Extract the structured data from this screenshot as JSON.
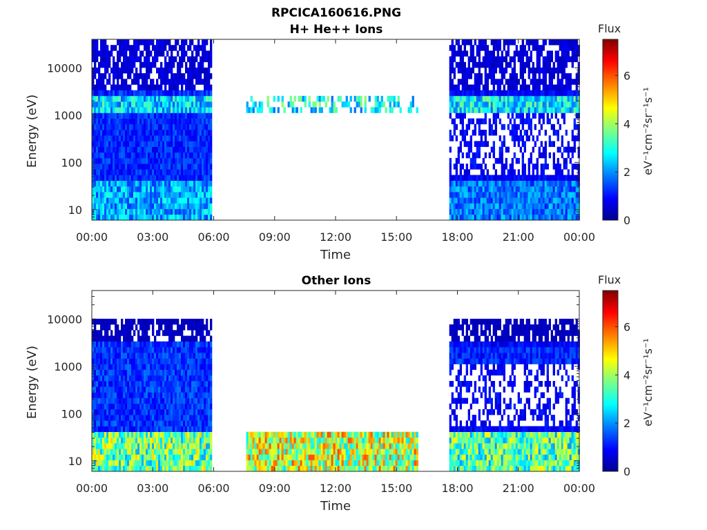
{
  "figure": {
    "title_line1": "RPCICA160616.PNG",
    "colorbar_title": "Flux",
    "colorbar_label": "eV⁻¹cm⁻²sr⁻¹s⁻¹",
    "colorbar_ticks": [
      "0",
      "2",
      "4",
      "6"
    ],
    "colorbar_range": [
      0,
      7.5
    ],
    "colormap": [
      "#00008f",
      "#0000ff",
      "#0080ff",
      "#00ffff",
      "#80ff80",
      "#ffff00",
      "#ff8000",
      "#ff0000",
      "#800000"
    ]
  },
  "chart_data": [
    {
      "type": "heatmap",
      "title": "H+ He++ Ions",
      "xlabel": "Time",
      "ylabel": "Energy (eV)",
      "x_ticks": [
        "00:00",
        "03:00",
        "06:00",
        "09:00",
        "12:00",
        "15:00",
        "18:00",
        "21:00",
        "00:00"
      ],
      "x_range_hours": [
        0,
        24
      ],
      "y_scale": "log",
      "y_ticks": [
        "10",
        "100",
        "1000",
        "10000"
      ],
      "y_range": [
        6,
        40000
      ],
      "intervals": [
        {
          "start_hour": 0.0,
          "end_hour": 5.9,
          "low_flux": 2.2,
          "mid_flux": 1.2,
          "high_flux": 0.6,
          "band_energy": 1500,
          "band_flux": 2.6
        },
        {
          "start_hour": 7.6,
          "end_hour": 16.0,
          "low_flux": 0,
          "mid_flux": 0,
          "high_flux": 0,
          "band_energy": 1500,
          "band_flux": 2.8
        },
        {
          "start_hour": 17.6,
          "end_hour": 24.0,
          "low_flux": 1.8,
          "mid_flux": 0.9,
          "high_flux": 0.6,
          "band_energy": 1500,
          "band_flux": 2.7
        }
      ]
    },
    {
      "type": "heatmap",
      "title": "Other Ions",
      "xlabel": "Time",
      "ylabel": "Energy (eV)",
      "x_ticks": [
        "00:00",
        "03:00",
        "06:00",
        "09:00",
        "12:00",
        "15:00",
        "18:00",
        "21:00",
        "00:00"
      ],
      "x_range_hours": [
        0,
        24
      ],
      "y_scale": "log",
      "y_ticks": [
        "10",
        "100",
        "1000",
        "10000"
      ],
      "y_range": [
        6,
        40000
      ],
      "intervals": [
        {
          "start_hour": 0.0,
          "end_hour": 5.9,
          "low_flux": 3.6,
          "mid_flux": 1.3,
          "high_flux": 0.4,
          "band_energy": 0,
          "band_flux": 0
        },
        {
          "start_hour": 7.6,
          "end_hour": 16.0,
          "low_flux": 4.3,
          "mid_flux": 0,
          "high_flux": 0,
          "band_energy": 0,
          "band_flux": 0
        },
        {
          "start_hour": 17.6,
          "end_hour": 24.0,
          "low_flux": 3.4,
          "mid_flux": 0.9,
          "high_flux": 0.4,
          "band_energy": 1500,
          "band_flux": 1.2
        }
      ]
    }
  ]
}
